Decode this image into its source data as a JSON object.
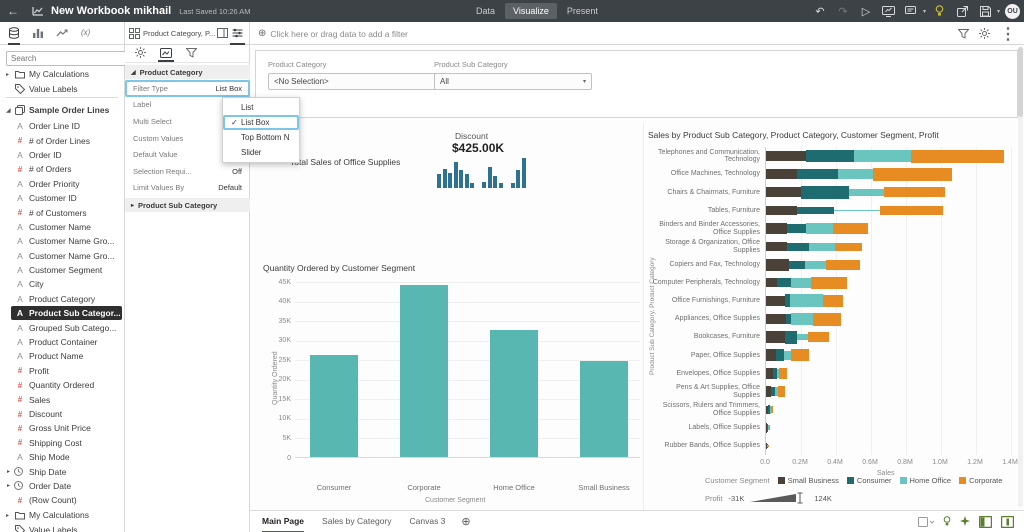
{
  "header": {
    "title": "New Workbook mikhail",
    "saved": "Last Saved 10:26 AM",
    "tabs": [
      {
        "label": "Data",
        "active": false
      },
      {
        "label": "Visualize",
        "active": true
      },
      {
        "label": "Present",
        "active": false
      }
    ],
    "avatar": "OU"
  },
  "left_tabs": [
    "data",
    "visualizations",
    "analytics",
    "calculations"
  ],
  "dataPanel": {
    "search_placeholder": "Search",
    "top_items": [
      {
        "icon": "folder",
        "label": "My Calculations",
        "caret": true
      },
      {
        "icon": "tag",
        "label": "Value Labels",
        "caret": false
      }
    ],
    "dataset": "Sample Order Lines",
    "fields": [
      {
        "icon": "A",
        "label": "Order Line ID"
      },
      {
        "icon": "#",
        "label": "# of Order Lines"
      },
      {
        "icon": "A",
        "label": "Order ID"
      },
      {
        "icon": "#",
        "label": "# of Orders"
      },
      {
        "icon": "A",
        "label": "Order Priority"
      },
      {
        "icon": "A",
        "label": "Customer ID"
      },
      {
        "icon": "#",
        "label": "# of Customers"
      },
      {
        "icon": "A",
        "label": "Customer Name"
      },
      {
        "icon": "A",
        "label": "Customer Name Gro..."
      },
      {
        "icon": "A",
        "label": "Customer Name Gro..."
      },
      {
        "icon": "A",
        "label": "Customer Segment"
      },
      {
        "icon": "A",
        "label": "City"
      },
      {
        "icon": "A",
        "label": "Product Category"
      },
      {
        "icon": "A",
        "label": "Product Sub Categor...",
        "selected": true
      },
      {
        "icon": "A",
        "label": "Grouped Sub Catego..."
      },
      {
        "icon": "A",
        "label": "Product Container"
      },
      {
        "icon": "A",
        "label": "Product Name"
      },
      {
        "icon": "#",
        "label": "Profit"
      },
      {
        "icon": "#",
        "label": "Quantity Ordered"
      },
      {
        "icon": "#",
        "label": "Sales"
      },
      {
        "icon": "#",
        "label": "Discount"
      },
      {
        "icon": "#",
        "label": "Gross Unit Price"
      },
      {
        "icon": "#",
        "label": "Shipping Cost"
      },
      {
        "icon": "A",
        "label": "Ship Mode"
      },
      {
        "icon": "clock",
        "label": "Ship Date",
        "caret": true
      },
      {
        "icon": "clock",
        "label": "Order Date",
        "caret": true
      },
      {
        "icon": "#",
        "label": "(Row Count)"
      }
    ],
    "bottom_items": [
      {
        "icon": "folder",
        "label": "My Calculations",
        "caret": true
      },
      {
        "icon": "tag",
        "label": "Value Labels",
        "caret": false
      }
    ]
  },
  "propertiesPanel": {
    "header": "Product Category, P...",
    "section_expanded": "Product Category",
    "rows": [
      {
        "label": "Filter Type",
        "value": "List Box",
        "highlighted": true
      },
      {
        "label": "Label",
        "value": ""
      },
      {
        "label": "Multi Select",
        "value": ""
      },
      {
        "label": "Custom Values",
        "value": ""
      },
      {
        "label": "Default Value",
        "value": ""
      },
      {
        "label": "Selection Requi...",
        "value": "Off"
      },
      {
        "label": "Limit Values By",
        "value": "Default"
      }
    ],
    "section_collapsed": "Product Sub Category",
    "menu": {
      "items": [
        {
          "label": "List",
          "checked": false,
          "highlighted": false
        },
        {
          "label": "List Box",
          "checked": true,
          "highlighted": true
        },
        {
          "label": "Top Bottom N",
          "checked": false,
          "highlighted": false
        },
        {
          "label": "Slider",
          "checked": false,
          "highlighted": false
        }
      ]
    }
  },
  "filterBar": {
    "placeholder": "Click here or drag data to add a filter"
  },
  "canvas": {
    "filters": [
      {
        "label": "Product Category",
        "value": "<No Selection>"
      },
      {
        "label": "Product Sub Category",
        "value": "All"
      }
    ],
    "text_viz": "Total Sales of Office Supplies",
    "kpi": {
      "label": "Discount",
      "value": "$425.00K",
      "spark_groups": [
        [
          0.45,
          0.62,
          0.5,
          0.85,
          0.6,
          0.45,
          0.15
        ],
        [
          0.2,
          0.7,
          0.4,
          0.15
        ],
        [
          0.15,
          0.6,
          1.0
        ]
      ]
    }
  },
  "chart_data": [
    {
      "type": "bar",
      "title": "Quantity Ordered by Customer Segment",
      "categories": [
        "Consumer",
        "Corporate",
        "Home Office",
        "Small Business"
      ],
      "values": [
        26000,
        44000,
        32500,
        24500
      ],
      "xlabel": "Customer Segment",
      "ylabel": "Quantity Ordered",
      "ylim": [
        0,
        45000
      ],
      "yticks": [
        "45K",
        "40K",
        "35K",
        "30K",
        "25K",
        "20K",
        "15K",
        "10K",
        "5K",
        "0"
      ],
      "bar_color": "#58b7b1",
      "grid": true
    },
    {
      "type": "bar",
      "orientation": "horizontal-stacked",
      "title": "Sales by Product Sub Category, Product Category, Customer Segment, Profit",
      "xlabel": "Sales",
      "ylabel": "Product Sub Category, Product Category",
      "xlim_millions": [
        0,
        1.4
      ],
      "xticks": [
        "0.0",
        "0.2M",
        "0.4M",
        "0.6M",
        "0.8M",
        "1.0M",
        "1.2M",
        "1.4M"
      ],
      "series_dimension": "Customer Segment",
      "segments": [
        "Small Business",
        "Consumer",
        "Home Office",
        "Corporate"
      ],
      "colors": [
        "#4a4139",
        "#1f6c70",
        "#6ac5bf",
        "#e78c23"
      ],
      "profit_legend": {
        "label": "Profit",
        "min": "-31K",
        "max": "124K"
      },
      "rows": [
        {
          "label": "Telephones and Communication, Technology",
          "values": [
            0.23,
            0.27,
            0.33,
            0.53
          ],
          "h": [
            0.75,
            0.95,
            0.95,
            1
          ]
        },
        {
          "label": "Office Machines, Technology",
          "values": [
            0.175,
            0.235,
            0.2,
            0.45
          ],
          "h": [
            0.8,
            0.75,
            0.8,
            1
          ]
        },
        {
          "label": "Chairs & Chairmats, Furniture",
          "values": [
            0.2,
            0.275,
            0.2,
            0.35
          ],
          "h": [
            0.8,
            1,
            0.55,
            0.8
          ]
        },
        {
          "label": "Tables, Furniture",
          "values": [
            0.175,
            0.215,
            0.26,
            0.36
          ],
          "h": [
            0.7,
            0.55,
            0.12,
            0.65
          ]
        },
        {
          "label": "Binders and Binder Accessories, Office Supplies",
          "values": [
            0.12,
            0.11,
            0.15,
            0.2
          ],
          "h": [
            0.9,
            0.7,
            0.85,
            0.9
          ]
        },
        {
          "label": "Storage & Organization, Office Supplies",
          "values": [
            0.12,
            0.125,
            0.15,
            0.155
          ],
          "h": [
            0.7,
            0.6,
            0.6,
            0.6
          ]
        },
        {
          "label": "Copiers and Fax, Technology",
          "values": [
            0.13,
            0.09,
            0.125,
            0.19
          ],
          "h": [
            0.9,
            0.6,
            0.6,
            0.8
          ]
        },
        {
          "label": "Computer Peripherals, Technology",
          "values": [
            0.065,
            0.08,
            0.11,
            0.21
          ],
          "h": [
            0.7,
            0.7,
            0.8,
            0.9
          ]
        },
        {
          "label": "Office Furnishings, Furniture",
          "values": [
            0.11,
            0.025,
            0.19,
            0.115
          ],
          "h": [
            0.8,
            1,
            1,
            0.9
          ]
        },
        {
          "label": "Appliances, Office Supplies",
          "values": [
            0.115,
            0.03,
            0.125,
            0.16
          ],
          "h": [
            0.8,
            0.8,
            0.9,
            1
          ]
        },
        {
          "label": "Bookcases, Furniture",
          "values": [
            0.11,
            0.065,
            0.065,
            0.12
          ],
          "h": [
            0.9,
            1,
            0.45,
            0.75
          ]
        },
        {
          "label": "Paper, Office Supplies",
          "values": [
            0.055,
            0.05,
            0.035,
            0.105
          ],
          "h": [
            0.9,
            0.9,
            0.7,
            0.9
          ]
        },
        {
          "label": "Envelopes, Office Supplies",
          "values": [
            0.04,
            0.022,
            0.015,
            0.045
          ],
          "h": [
            0.9,
            0.8,
            0.7,
            0.8
          ]
        },
        {
          "label": "Pens & Art Supplies, Office Supplies",
          "values": [
            0.03,
            0.02,
            0.018,
            0.04
          ],
          "h": [
            0.8,
            0.7,
            0.7,
            0.8
          ]
        },
        {
          "label": "Scissors, Rulers and Trimmers, Office Supplies",
          "values": [
            0.012,
            0.01,
            0.008,
            0.012
          ],
          "h": [
            0.6,
            0.7,
            0.6,
            0.5
          ]
        },
        {
          "label": "Labels, Office Supplies",
          "values": [
            0.008,
            0.005,
            0.003,
            0.004
          ],
          "h": [
            0.8,
            0.6,
            0.4,
            0.4
          ]
        },
        {
          "label": "Rubber Bands, Office Supplies",
          "values": [
            0.002,
            0.0015,
            0.001,
            0.0015
          ],
          "h": [
            0.5,
            0.3,
            0.2,
            0.2
          ]
        }
      ]
    }
  ],
  "footer": {
    "tabs": [
      {
        "label": "Main Page",
        "active": true
      },
      {
        "label": "Sales by Category",
        "active": false
      },
      {
        "label": "Canvas 3",
        "active": false
      }
    ]
  },
  "colors": {
    "accent_blue": "#7dc6e8",
    "teal": "#58b7b1",
    "orange": "#e78c23",
    "spark_blue": "#2d7291",
    "green_icon": "#5d7d2f",
    "bulb_yellow": "#c9bd2a"
  }
}
